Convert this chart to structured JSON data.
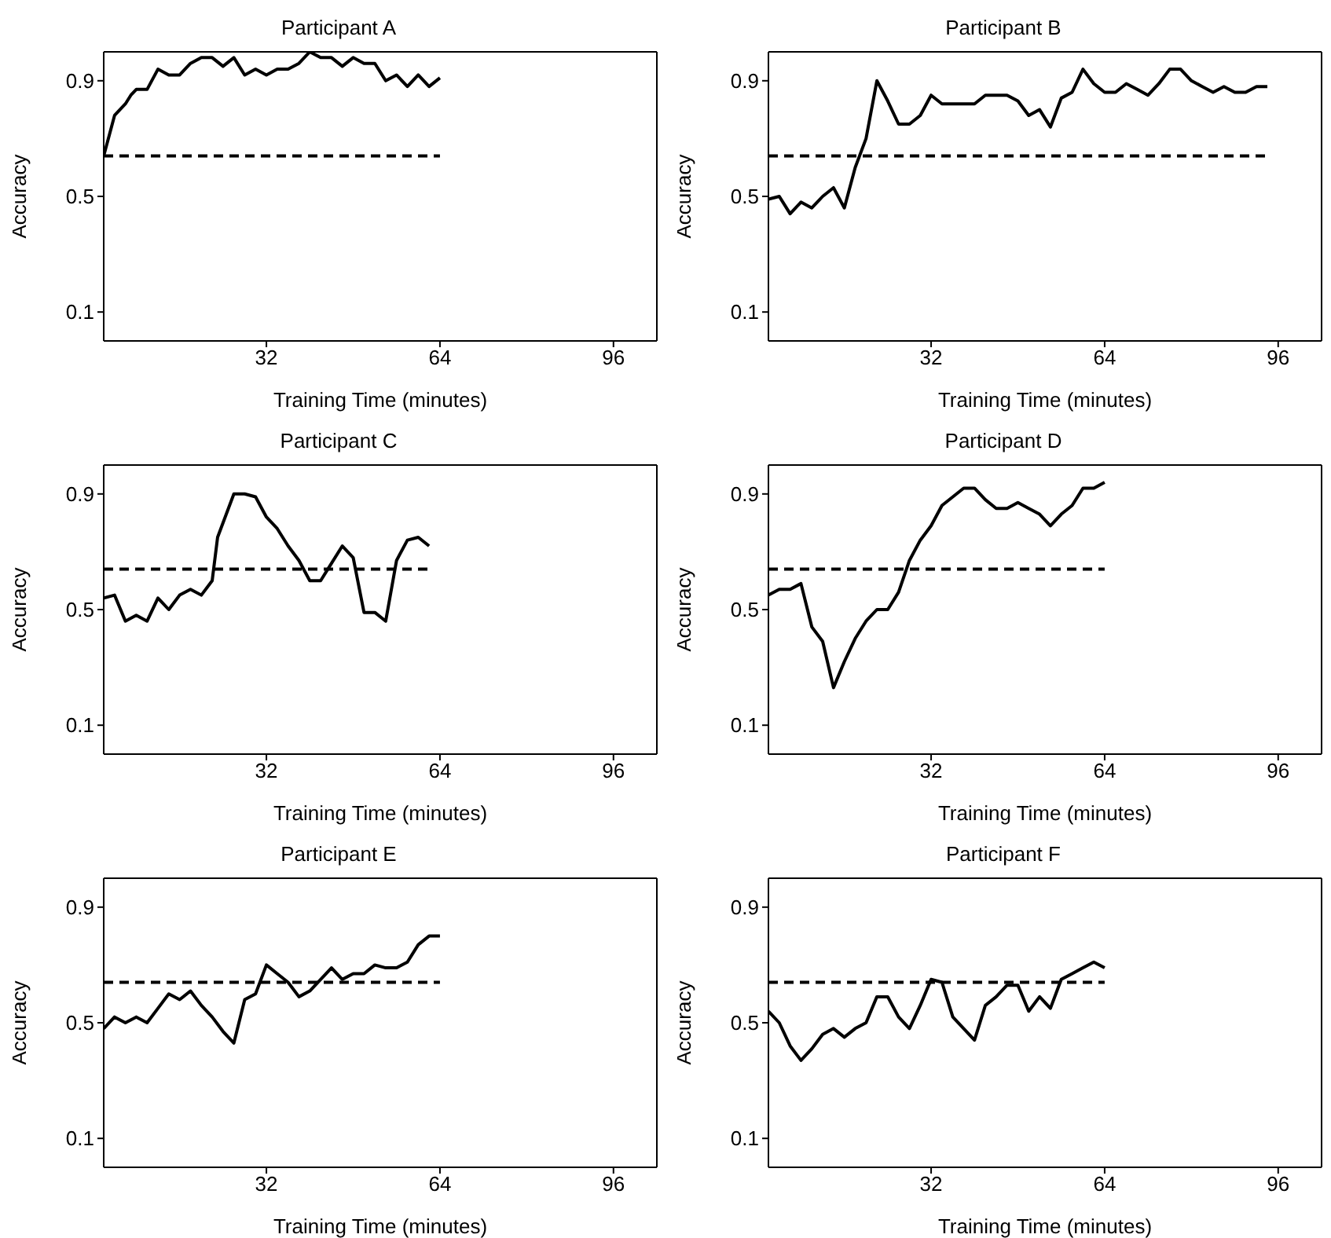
{
  "chart_data": [
    {
      "type": "line",
      "title": "Participant A",
      "xlabel": "Training Time (minutes)",
      "ylabel": "Accuracy",
      "xlim": [
        2,
        104
      ],
      "ylim": [
        0,
        1
      ],
      "xticks": [
        32,
        64,
        96
      ],
      "yticks": [
        0.1,
        0.5,
        0.9
      ],
      "series": [
        {
          "color": "#000000",
          "x": [
            2,
            3,
            4,
            6,
            7,
            8,
            10,
            12,
            14,
            16,
            18,
            20,
            22,
            24,
            26,
            28,
            30,
            32,
            34,
            36,
            38,
            40,
            42,
            44,
            46,
            48,
            50,
            52,
            54,
            56,
            58,
            60,
            62,
            64
          ],
          "values": [
            0.64,
            0.71,
            0.78,
            0.82,
            0.85,
            0.87,
            0.87,
            0.94,
            0.92,
            0.92,
            0.96,
            0.98,
            0.98,
            0.95,
            0.98,
            0.92,
            0.94,
            0.92,
            0.94,
            0.94,
            0.96,
            1.0,
            0.98,
            0.98,
            0.95,
            0.98,
            0.96,
            0.96,
            0.9,
            0.92,
            0.88,
            0.92,
            0.88,
            0.91
          ]
        },
        {
          "color": "#000000",
          "type": "line",
          "line_style": "dashed",
          "x": [
            2,
            64
          ],
          "values": [
            0.64,
            0.64
          ]
        }
      ]
    },
    {
      "type": "line",
      "title": "Participant B",
      "xlabel": "Training Time (minutes)",
      "ylabel": "Accuracy",
      "xlim": [
        2,
        104
      ],
      "ylim": [
        0,
        1
      ],
      "xticks": [
        32,
        64,
        96
      ],
      "yticks": [
        0.1,
        0.5,
        0.9
      ],
      "series": [
        {
          "color": "#000000",
          "x": [
            2,
            4,
            6,
            8,
            10,
            12,
            14,
            16,
            18,
            20,
            22,
            24,
            26,
            28,
            30,
            32,
            34,
            36,
            40,
            42,
            46,
            48,
            50,
            52,
            54,
            56,
            58,
            60,
            62,
            64,
            66,
            68,
            70,
            72,
            74,
            76,
            78,
            80,
            82,
            84,
            86,
            88,
            90,
            92,
            94
          ],
          "values": [
            0.49,
            0.5,
            0.44,
            0.48,
            0.46,
            0.5,
            0.53,
            0.46,
            0.6,
            0.7,
            0.9,
            0.83,
            0.75,
            0.75,
            0.78,
            0.85,
            0.82,
            0.82,
            0.82,
            0.85,
            0.85,
            0.83,
            0.78,
            0.8,
            0.74,
            0.84,
            0.86,
            0.94,
            0.89,
            0.86,
            0.86,
            0.89,
            0.87,
            0.85,
            0.89,
            0.94,
            0.94,
            0.9,
            0.88,
            0.86,
            0.88,
            0.86,
            0.86,
            0.88,
            0.88
          ]
        },
        {
          "color": "#000000",
          "type": "line",
          "line_style": "dashed",
          "x": [
            2,
            94
          ],
          "values": [
            0.64,
            0.64
          ]
        }
      ]
    },
    {
      "type": "line",
      "title": "Participant C",
      "xlabel": "Training Time (minutes)",
      "ylabel": "Accuracy",
      "xlim": [
        2,
        104
      ],
      "ylim": [
        0,
        1
      ],
      "xticks": [
        32,
        64,
        96
      ],
      "yticks": [
        0.1,
        0.5,
        0.9
      ],
      "series": [
        {
          "color": "#000000",
          "x": [
            2,
            4,
            6,
            8,
            10,
            12,
            14,
            16,
            18,
            20,
            22,
            23,
            26,
            28,
            30,
            32,
            34,
            36,
            38,
            40,
            42,
            44,
            46,
            48,
            50,
            52,
            54,
            56,
            58,
            60,
            62
          ],
          "values": [
            0.54,
            0.55,
            0.46,
            0.48,
            0.46,
            0.54,
            0.5,
            0.55,
            0.57,
            0.55,
            0.6,
            0.75,
            0.9,
            0.9,
            0.89,
            0.82,
            0.78,
            0.72,
            0.67,
            0.6,
            0.6,
            0.66,
            0.72,
            0.68,
            0.49,
            0.49,
            0.46,
            0.67,
            0.74,
            0.75,
            0.72
          ]
        },
        {
          "color": "#000000",
          "type": "line",
          "line_style": "dashed",
          "x": [
            2,
            62
          ],
          "values": [
            0.64,
            0.64
          ]
        }
      ]
    },
    {
      "type": "line",
      "title": "Participant D",
      "xlabel": "Training Time (minutes)",
      "ylabel": "Accuracy",
      "xlim": [
        2,
        104
      ],
      "ylim": [
        0,
        1
      ],
      "xticks": [
        32,
        64,
        96
      ],
      "yticks": [
        0.1,
        0.5,
        0.9
      ],
      "series": [
        {
          "color": "#000000",
          "x": [
            2,
            4,
            6,
            8,
            10,
            12,
            14,
            16,
            18,
            20,
            22,
            24,
            26,
            28,
            30,
            32,
            34,
            36,
            38,
            40,
            42,
            44,
            46,
            48,
            50,
            52,
            54,
            56,
            58,
            60,
            62,
            64
          ],
          "values": [
            0.55,
            0.57,
            0.57,
            0.59,
            0.44,
            0.39,
            0.23,
            0.32,
            0.4,
            0.46,
            0.5,
            0.5,
            0.56,
            0.67,
            0.74,
            0.79,
            0.86,
            0.89,
            0.92,
            0.92,
            0.88,
            0.85,
            0.85,
            0.87,
            0.85,
            0.83,
            0.79,
            0.83,
            0.86,
            0.92,
            0.92,
            0.94
          ]
        },
        {
          "color": "#000000",
          "type": "line",
          "line_style": "dashed",
          "x": [
            2,
            64
          ],
          "values": [
            0.64,
            0.64
          ]
        }
      ]
    },
    {
      "type": "line",
      "title": "Participant E",
      "xlabel": "Training Time (minutes)",
      "ylabel": "Accuracy",
      "xlim": [
        2,
        104
      ],
      "ylim": [
        0,
        1
      ],
      "xticks": [
        32,
        64,
        96
      ],
      "yticks": [
        0.1,
        0.5,
        0.9
      ],
      "series": [
        {
          "color": "#000000",
          "x": [
            2,
            4,
            6,
            8,
            10,
            12,
            14,
            16,
            18,
            20,
            22,
            24,
            26,
            28,
            30,
            32,
            34,
            36,
            38,
            40,
            42,
            44,
            46,
            48,
            50,
            52,
            54,
            56,
            58,
            60,
            62,
            64
          ],
          "values": [
            0.48,
            0.52,
            0.5,
            0.52,
            0.5,
            0.55,
            0.6,
            0.58,
            0.61,
            0.56,
            0.52,
            0.47,
            0.43,
            0.58,
            0.6,
            0.7,
            0.67,
            0.64,
            0.59,
            0.61,
            0.65,
            0.69,
            0.65,
            0.67,
            0.67,
            0.7,
            0.69,
            0.69,
            0.71,
            0.77,
            0.8,
            0.8
          ]
        },
        {
          "color": "#000000",
          "type": "line",
          "line_style": "dashed",
          "x": [
            2,
            64
          ],
          "values": [
            0.64,
            0.64
          ]
        }
      ]
    },
    {
      "type": "line",
      "title": "Participant F",
      "xlabel": "Training Time (minutes)",
      "ylabel": "Accuracy",
      "xlim": [
        2,
        104
      ],
      "ylim": [
        0,
        1
      ],
      "xticks": [
        32,
        64,
        96
      ],
      "yticks": [
        0.1,
        0.5,
        0.9
      ],
      "series": [
        {
          "color": "#000000",
          "x": [
            2,
            4,
            6,
            8,
            10,
            12,
            14,
            16,
            18,
            20,
            22,
            24,
            26,
            28,
            30,
            32,
            34,
            36,
            38,
            40,
            42,
            44,
            46,
            48,
            50,
            52,
            54,
            56,
            58,
            60,
            62,
            64
          ],
          "values": [
            0.54,
            0.5,
            0.42,
            0.37,
            0.41,
            0.46,
            0.48,
            0.45,
            0.48,
            0.5,
            0.59,
            0.59,
            0.52,
            0.48,
            0.56,
            0.65,
            0.64,
            0.52,
            0.48,
            0.44,
            0.56,
            0.59,
            0.63,
            0.63,
            0.54,
            0.59,
            0.55,
            0.65,
            0.67,
            0.69,
            0.71,
            0.69
          ]
        },
        {
          "color": "#000000",
          "type": "line",
          "line_style": "dashed",
          "x": [
            2,
            64
          ],
          "values": [
            0.64,
            0.64
          ]
        }
      ]
    }
  ]
}
